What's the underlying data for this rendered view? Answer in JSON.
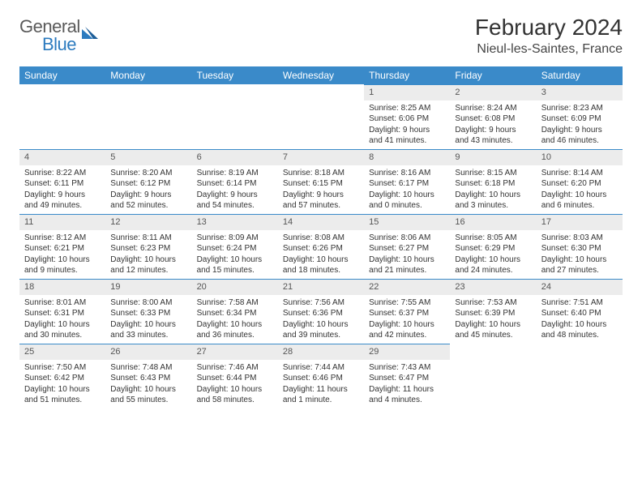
{
  "brand": {
    "part1": "General",
    "part2": "Blue"
  },
  "title": "February 2024",
  "location": "Nieul-les-Saintes, France",
  "colors": {
    "header_bg": "#3a8ac9",
    "header_text": "#ffffff",
    "daynum_bg": "#ececec",
    "daynum_border": "#3a8ac9",
    "text": "#333333",
    "brand_gray": "#5a5a5a",
    "brand_blue": "#2c7bbf"
  },
  "day_names": [
    "Sunday",
    "Monday",
    "Tuesday",
    "Wednesday",
    "Thursday",
    "Friday",
    "Saturday"
  ],
  "weeks": [
    [
      {
        "empty": true
      },
      {
        "empty": true
      },
      {
        "empty": true
      },
      {
        "empty": true
      },
      {
        "num": "1",
        "sunrise": "Sunrise: 8:25 AM",
        "sunset": "Sunset: 6:06 PM",
        "d1": "Daylight: 9 hours",
        "d2": "and 41 minutes."
      },
      {
        "num": "2",
        "sunrise": "Sunrise: 8:24 AM",
        "sunset": "Sunset: 6:08 PM",
        "d1": "Daylight: 9 hours",
        "d2": "and 43 minutes."
      },
      {
        "num": "3",
        "sunrise": "Sunrise: 8:23 AM",
        "sunset": "Sunset: 6:09 PM",
        "d1": "Daylight: 9 hours",
        "d2": "and 46 minutes."
      }
    ],
    [
      {
        "num": "4",
        "sunrise": "Sunrise: 8:22 AM",
        "sunset": "Sunset: 6:11 PM",
        "d1": "Daylight: 9 hours",
        "d2": "and 49 minutes."
      },
      {
        "num": "5",
        "sunrise": "Sunrise: 8:20 AM",
        "sunset": "Sunset: 6:12 PM",
        "d1": "Daylight: 9 hours",
        "d2": "and 52 minutes."
      },
      {
        "num": "6",
        "sunrise": "Sunrise: 8:19 AM",
        "sunset": "Sunset: 6:14 PM",
        "d1": "Daylight: 9 hours",
        "d2": "and 54 minutes."
      },
      {
        "num": "7",
        "sunrise": "Sunrise: 8:18 AM",
        "sunset": "Sunset: 6:15 PM",
        "d1": "Daylight: 9 hours",
        "d2": "and 57 minutes."
      },
      {
        "num": "8",
        "sunrise": "Sunrise: 8:16 AM",
        "sunset": "Sunset: 6:17 PM",
        "d1": "Daylight: 10 hours",
        "d2": "and 0 minutes."
      },
      {
        "num": "9",
        "sunrise": "Sunrise: 8:15 AM",
        "sunset": "Sunset: 6:18 PM",
        "d1": "Daylight: 10 hours",
        "d2": "and 3 minutes."
      },
      {
        "num": "10",
        "sunrise": "Sunrise: 8:14 AM",
        "sunset": "Sunset: 6:20 PM",
        "d1": "Daylight: 10 hours",
        "d2": "and 6 minutes."
      }
    ],
    [
      {
        "num": "11",
        "sunrise": "Sunrise: 8:12 AM",
        "sunset": "Sunset: 6:21 PM",
        "d1": "Daylight: 10 hours",
        "d2": "and 9 minutes."
      },
      {
        "num": "12",
        "sunrise": "Sunrise: 8:11 AM",
        "sunset": "Sunset: 6:23 PM",
        "d1": "Daylight: 10 hours",
        "d2": "and 12 minutes."
      },
      {
        "num": "13",
        "sunrise": "Sunrise: 8:09 AM",
        "sunset": "Sunset: 6:24 PM",
        "d1": "Daylight: 10 hours",
        "d2": "and 15 minutes."
      },
      {
        "num": "14",
        "sunrise": "Sunrise: 8:08 AM",
        "sunset": "Sunset: 6:26 PM",
        "d1": "Daylight: 10 hours",
        "d2": "and 18 minutes."
      },
      {
        "num": "15",
        "sunrise": "Sunrise: 8:06 AM",
        "sunset": "Sunset: 6:27 PM",
        "d1": "Daylight: 10 hours",
        "d2": "and 21 minutes."
      },
      {
        "num": "16",
        "sunrise": "Sunrise: 8:05 AM",
        "sunset": "Sunset: 6:29 PM",
        "d1": "Daylight: 10 hours",
        "d2": "and 24 minutes."
      },
      {
        "num": "17",
        "sunrise": "Sunrise: 8:03 AM",
        "sunset": "Sunset: 6:30 PM",
        "d1": "Daylight: 10 hours",
        "d2": "and 27 minutes."
      }
    ],
    [
      {
        "num": "18",
        "sunrise": "Sunrise: 8:01 AM",
        "sunset": "Sunset: 6:31 PM",
        "d1": "Daylight: 10 hours",
        "d2": "and 30 minutes."
      },
      {
        "num": "19",
        "sunrise": "Sunrise: 8:00 AM",
        "sunset": "Sunset: 6:33 PM",
        "d1": "Daylight: 10 hours",
        "d2": "and 33 minutes."
      },
      {
        "num": "20",
        "sunrise": "Sunrise: 7:58 AM",
        "sunset": "Sunset: 6:34 PM",
        "d1": "Daylight: 10 hours",
        "d2": "and 36 minutes."
      },
      {
        "num": "21",
        "sunrise": "Sunrise: 7:56 AM",
        "sunset": "Sunset: 6:36 PM",
        "d1": "Daylight: 10 hours",
        "d2": "and 39 minutes."
      },
      {
        "num": "22",
        "sunrise": "Sunrise: 7:55 AM",
        "sunset": "Sunset: 6:37 PM",
        "d1": "Daylight: 10 hours",
        "d2": "and 42 minutes."
      },
      {
        "num": "23",
        "sunrise": "Sunrise: 7:53 AM",
        "sunset": "Sunset: 6:39 PM",
        "d1": "Daylight: 10 hours",
        "d2": "and 45 minutes."
      },
      {
        "num": "24",
        "sunrise": "Sunrise: 7:51 AM",
        "sunset": "Sunset: 6:40 PM",
        "d1": "Daylight: 10 hours",
        "d2": "and 48 minutes."
      }
    ],
    [
      {
        "num": "25",
        "sunrise": "Sunrise: 7:50 AM",
        "sunset": "Sunset: 6:42 PM",
        "d1": "Daylight: 10 hours",
        "d2": "and 51 minutes."
      },
      {
        "num": "26",
        "sunrise": "Sunrise: 7:48 AM",
        "sunset": "Sunset: 6:43 PM",
        "d1": "Daylight: 10 hours",
        "d2": "and 55 minutes."
      },
      {
        "num": "27",
        "sunrise": "Sunrise: 7:46 AM",
        "sunset": "Sunset: 6:44 PM",
        "d1": "Daylight: 10 hours",
        "d2": "and 58 minutes."
      },
      {
        "num": "28",
        "sunrise": "Sunrise: 7:44 AM",
        "sunset": "Sunset: 6:46 PM",
        "d1": "Daylight: 11 hours",
        "d2": "and 1 minute."
      },
      {
        "num": "29",
        "sunrise": "Sunrise: 7:43 AM",
        "sunset": "Sunset: 6:47 PM",
        "d1": "Daylight: 11 hours",
        "d2": "and 4 minutes."
      },
      {
        "empty": true
      },
      {
        "empty": true
      }
    ]
  ]
}
